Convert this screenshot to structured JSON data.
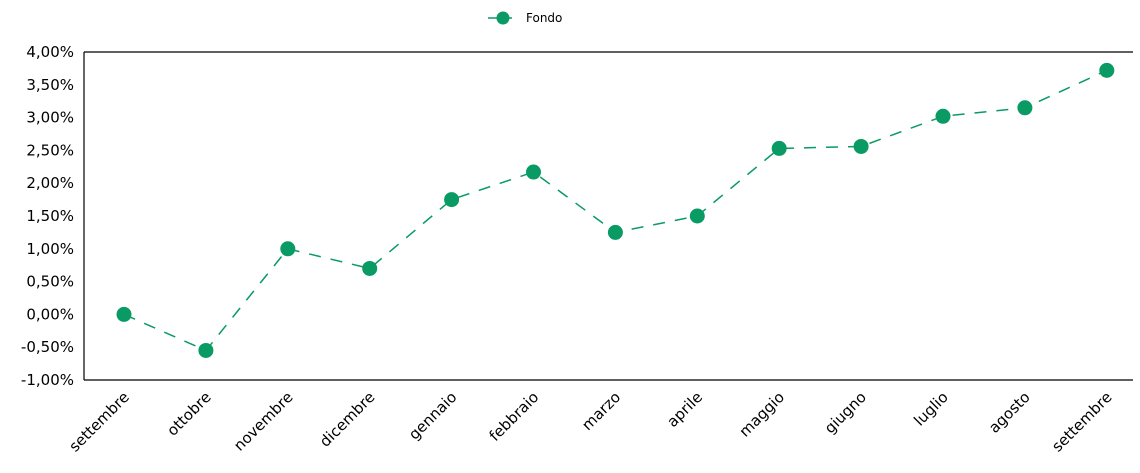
{
  "chart_data": {
    "type": "line",
    "categories": [
      "settembre",
      "ottobre",
      "novembre",
      "dicembre",
      "gennaio",
      "febbraio",
      "marzo",
      "aprile",
      "maggio",
      "giugno",
      "luglio",
      "agosto",
      "settembre"
    ],
    "series": [
      {
        "name": "Fondo",
        "values": [
          0.0,
          -0.55,
          1.0,
          0.7,
          1.75,
          2.17,
          1.25,
          1.5,
          2.53,
          2.56,
          3.02,
          3.15,
          3.72
        ],
        "color": "#0a9a64",
        "line_style": "dashed",
        "marker": "circle"
      }
    ],
    "yticks": [
      "4,00%",
      "3,50%",
      "3,00%",
      "2,50%",
      "2,00%",
      "1,50%",
      "1,00%",
      "0,50%",
      "0,00%",
      "-0,50%",
      "-1,00%"
    ],
    "ylim": [
      -1.0,
      4.0
    ],
    "grid": false,
    "legend_position": "top-center",
    "title": "",
    "xlabel": "",
    "ylabel": ""
  }
}
